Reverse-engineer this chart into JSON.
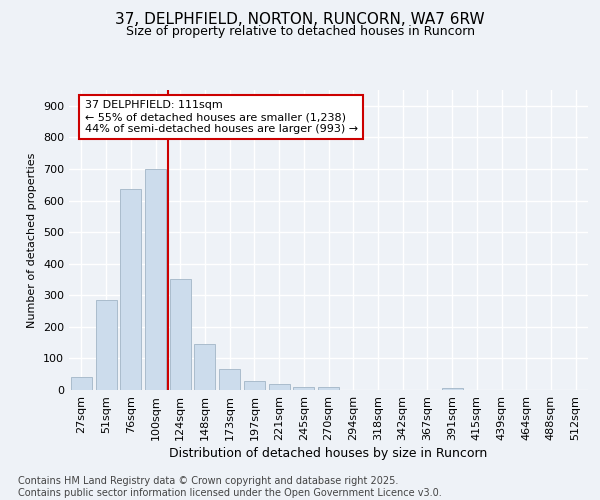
{
  "title_line1": "37, DELPHFIELD, NORTON, RUNCORN, WA7 6RW",
  "title_line2": "Size of property relative to detached houses in Runcorn",
  "xlabel": "Distribution of detached houses by size in Runcorn",
  "ylabel": "Number of detached properties",
  "categories": [
    "27sqm",
    "51sqm",
    "76sqm",
    "100sqm",
    "124sqm",
    "148sqm",
    "173sqm",
    "197sqm",
    "221sqm",
    "245sqm",
    "270sqm",
    "294sqm",
    "318sqm",
    "342sqm",
    "367sqm",
    "391sqm",
    "415sqm",
    "439sqm",
    "464sqm",
    "488sqm",
    "512sqm"
  ],
  "values": [
    40,
    285,
    635,
    700,
    350,
    145,
    65,
    30,
    20,
    10,
    8,
    0,
    0,
    0,
    0,
    5,
    0,
    0,
    0,
    0,
    0
  ],
  "bar_color": "#ccdcec",
  "bar_edge_color": "#aabccc",
  "red_line_color": "#cc0000",
  "annotation_line1": "37 DELPHFIELD: 111sqm",
  "annotation_line2": "← 55% of detached houses are smaller (1,238)",
  "annotation_line3": "44% of semi-detached houses are larger (993) →",
  "annotation_box_color": "#ffffff",
  "annotation_box_edge": "#cc0000",
  "footnote": "Contains HM Land Registry data © Crown copyright and database right 2025.\nContains public sector information licensed under the Open Government Licence v3.0.",
  "ylim": [
    0,
    950
  ],
  "yticks": [
    0,
    100,
    200,
    300,
    400,
    500,
    600,
    700,
    800,
    900
  ],
  "background_color": "#eef2f7",
  "grid_color": "#ffffff",
  "title1_fontsize": 11,
  "title2_fontsize": 9,
  "xlabel_fontsize": 9,
  "ylabel_fontsize": 8,
  "tick_fontsize": 8,
  "annot_fontsize": 8,
  "footnote_fontsize": 7
}
